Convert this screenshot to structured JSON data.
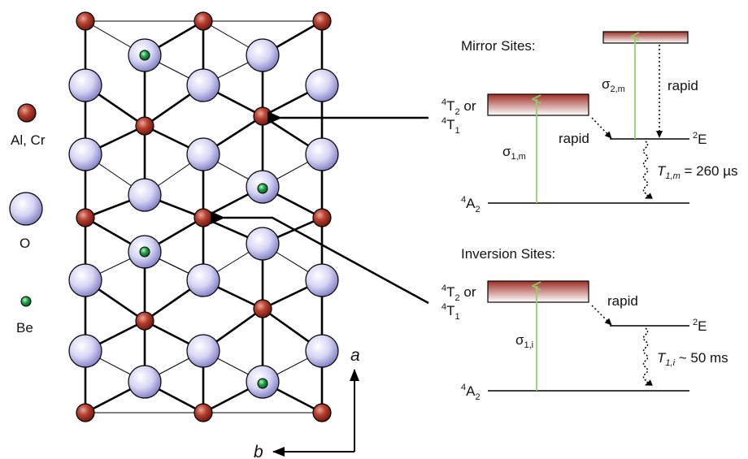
{
  "legend": {
    "cation_label": "Al, Cr",
    "oxygen_label": "O",
    "beryllium_label": "Be"
  },
  "axes": {
    "a_label": "a",
    "b_label": "b"
  },
  "mirror": {
    "heading": "Mirror Sites:",
    "upper_state_T2": "T",
    "upper_state_T2_sub": "2",
    "upper_state_T2_sup": "4",
    "upper_state_or": " or",
    "upper_state_T1": "T",
    "upper_state_T1_sub": "1",
    "upper_state_T1_sup": "4",
    "ground": "A",
    "ground_sub": "2",
    "ground_sup": "4",
    "E_level": "E",
    "E_sup": "2",
    "rapid_1": "rapid",
    "rapid_2": "rapid",
    "sigma1": "σ",
    "sigma1_sub": "1,m",
    "sigma2": "σ",
    "sigma2_sub": "2,m",
    "lifetime_symbol": "T",
    "lifetime_sub": "1,m",
    "lifetime_value": " = 260 µs"
  },
  "inversion": {
    "heading": "Inversion Sites:",
    "upper_state_T2": "T",
    "upper_state_T2_sub": "2",
    "upper_state_T2_sup": "4",
    "upper_state_or": " or",
    "upper_state_T1": "T",
    "upper_state_T1_sub": "1",
    "upper_state_T1_sup": "4",
    "ground": "A",
    "ground_sub": "2",
    "ground_sup": "4",
    "E_level": "E",
    "E_sup": "2",
    "rapid": "rapid",
    "sigma1": "σ",
    "sigma1_sub": "1,i",
    "lifetime_symbol": "T",
    "lifetime_sub": "1,i",
    "lifetime_value": " ~ 50 ms"
  },
  "colors": {
    "cation": "#b03a2e",
    "oxygen": "#c9c8ee",
    "beryllium": "#1fa64a",
    "pump_arrow": "#8fd16a",
    "band_top": "#a9382e",
    "band_bottom": "#ffffff"
  }
}
